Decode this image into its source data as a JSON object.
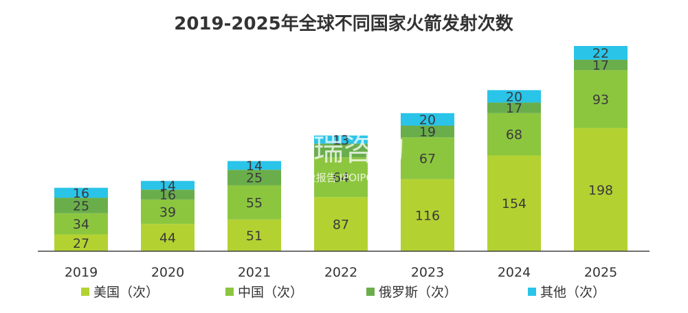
{
  "chart_data": {
    "type": "bar",
    "stacked": true,
    "title": "2019-2025年全球不同国家火箭发射次数",
    "categories": [
      "2019",
      "2020",
      "2021",
      "2022",
      "2023",
      "2024",
      "2025"
    ],
    "series": [
      {
        "name": "美国（次）",
        "color": "#b3d232",
        "values": [
          27,
          44,
          51,
          87,
          116,
          154,
          198
        ]
      },
      {
        "name": "中国（次）",
        "color": "#8cc63f",
        "values": [
          34,
          39,
          55,
          64,
          67,
          68,
          93
        ]
      },
      {
        "name": "俄罗斯（次）",
        "color": "#6aae4b",
        "values": [
          25,
          16,
          25,
          22,
          19,
          17,
          17
        ]
      },
      {
        "name": "其他（次）",
        "color": "#29c4e8",
        "values": [
          16,
          14,
          14,
          13,
          20,
          20,
          22
        ]
      }
    ],
    "data_labels": {
      "美国（次）": [
        "27",
        "44",
        "51",
        "87",
        "116",
        "154",
        "198"
      ],
      "中国（次）": [
        "34",
        "39",
        "55",
        "64",
        "67",
        "68",
        "93"
      ],
      "俄罗斯（次）": [
        "25",
        "16",
        "25",
        "",
        "19",
        "17",
        "17"
      ],
      "其他（次）": [
        "16",
        "14",
        "14",
        "13",
        "20",
        "20",
        "22"
      ]
    },
    "legend_position": "bottom",
    "grid": false
  },
  "watermark": {
    "logo": "艾瑞咨询",
    "text": "行业报告",
    "site": "IPOIPO.CN"
  }
}
